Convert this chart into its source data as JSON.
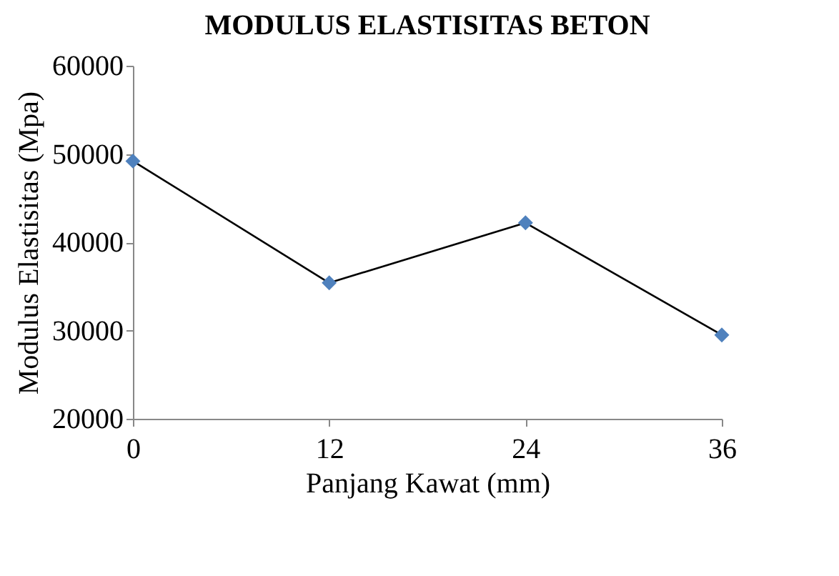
{
  "chart_data": {
    "type": "line",
    "title": "MODULUS ELASTISITAS BETON",
    "xlabel": "Panjang Kawat (mm)",
    "ylabel": "Modulus Elastisitas (Mpa)",
    "x": [
      0,
      12,
      24,
      36
    ],
    "series": [
      {
        "color": "#000000",
        "marker": "none",
        "values": [
          49200,
          35400,
          42200,
          29500
        ]
      },
      {
        "type": "scatter",
        "color": "#4f81bd",
        "marker": "diamond",
        "values": [
          49200,
          35400,
          42200,
          29500
        ]
      }
    ],
    "xlim": [
      0,
      36
    ],
    "xticks": [
      0,
      12,
      24,
      36
    ],
    "ylim": [
      20000,
      60000
    ],
    "yticks": [
      20000,
      30000,
      40000,
      50000,
      60000
    ],
    "grid": false,
    "line_style": "solid"
  }
}
